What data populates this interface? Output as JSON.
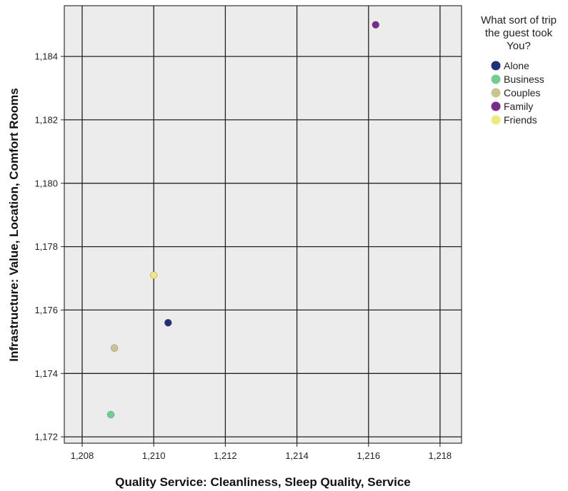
{
  "chart_data": {
    "type": "scatter",
    "xlabel": "Quality Service: Cleanliness, Sleep Quality, Service",
    "ylabel": "Infrastructure: Value, Location, Comfort Rooms",
    "xlim": [
      1.2075,
      1.2186
    ],
    "ylim": [
      1.1718,
      1.1856
    ],
    "x_ticks": [
      1.208,
      1.21,
      1.212,
      1.214,
      1.216,
      1.218
    ],
    "x_tick_labels": [
      "1,208",
      "1,210",
      "1,212",
      "1,214",
      "1,216",
      "1,218"
    ],
    "y_ticks": [
      1.172,
      1.174,
      1.176,
      1.178,
      1.18,
      1.182,
      1.184
    ],
    "y_tick_labels": [
      "1,172",
      "1,174",
      "1,176",
      "1,178",
      "1,180",
      "1,182",
      "1,184"
    ],
    "grid": true,
    "legend_title_lines": [
      "What sort of trip",
      "the guest took",
      "You?"
    ],
    "legend_placement": "right",
    "series": [
      {
        "name": "Alone",
        "color": "#1f2f7a",
        "points": [
          [
            1.2104,
            1.1756
          ]
        ]
      },
      {
        "name": "Business",
        "color": "#6fcf8e",
        "points": [
          [
            1.2088,
            1.1727
          ]
        ]
      },
      {
        "name": "Couples",
        "color": "#c9c58e",
        "points": [
          [
            1.2089,
            1.1748
          ]
        ]
      },
      {
        "name": "Family",
        "color": "#7a2a8c",
        "points": [
          [
            1.2162,
            1.185
          ]
        ]
      },
      {
        "name": "Friends",
        "color": "#eeea7a",
        "points": [
          [
            1.21,
            1.1771
          ]
        ]
      }
    ]
  }
}
